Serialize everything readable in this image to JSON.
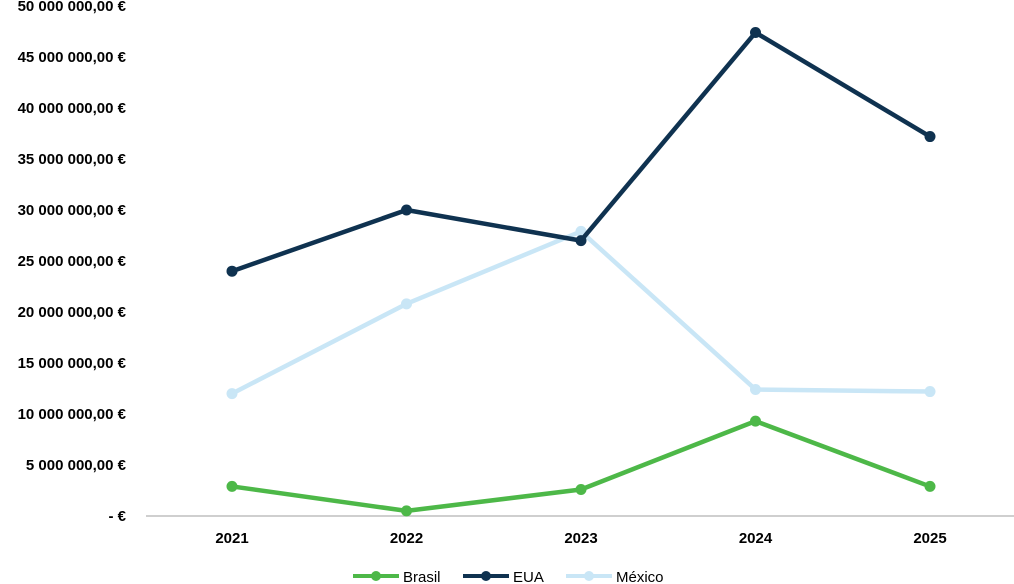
{
  "chart_data": {
    "type": "line",
    "title": "",
    "xlabel": "",
    "ylabel": "",
    "categories": [
      "2021",
      "2022",
      "2023",
      "2024",
      "2025"
    ],
    "y_ticks": [
      {
        "value": 0,
        "label": "-  €"
      },
      {
        "value": 5000000,
        "label": "5 000 000,00 €"
      },
      {
        "value": 10000000,
        "label": "10 000 000,00 €"
      },
      {
        "value": 15000000,
        "label": "15 000 000,00 €"
      },
      {
        "value": 20000000,
        "label": "20 000 000,00 €"
      },
      {
        "value": 25000000,
        "label": "25 000 000,00 €"
      },
      {
        "value": 30000000,
        "label": "30 000 000,00 €"
      },
      {
        "value": 35000000,
        "label": "35 000 000,00 €"
      },
      {
        "value": 40000000,
        "label": "40 000 000,00 €"
      },
      {
        "value": 45000000,
        "label": "45 000 000,00 €"
      },
      {
        "value": 50000000,
        "label": "50 000 000,00 €"
      }
    ],
    "ylim": [
      0,
      50000000
    ],
    "grid": false,
    "legend_position": "bottom",
    "series": [
      {
        "name": "Brasil",
        "color": "#4DB848",
        "values": [
          2900000,
          500000,
          2600000,
          9300000,
          2900000
        ]
      },
      {
        "name": "EUA",
        "color": "#0F3250",
        "values": [
          24000000,
          30000000,
          27000000,
          47400000,
          37200000
        ]
      },
      {
        "name": "México",
        "color": "#C9E6F6",
        "values": [
          12000000,
          20800000,
          27900000,
          12400000,
          12200000
        ]
      }
    ]
  }
}
